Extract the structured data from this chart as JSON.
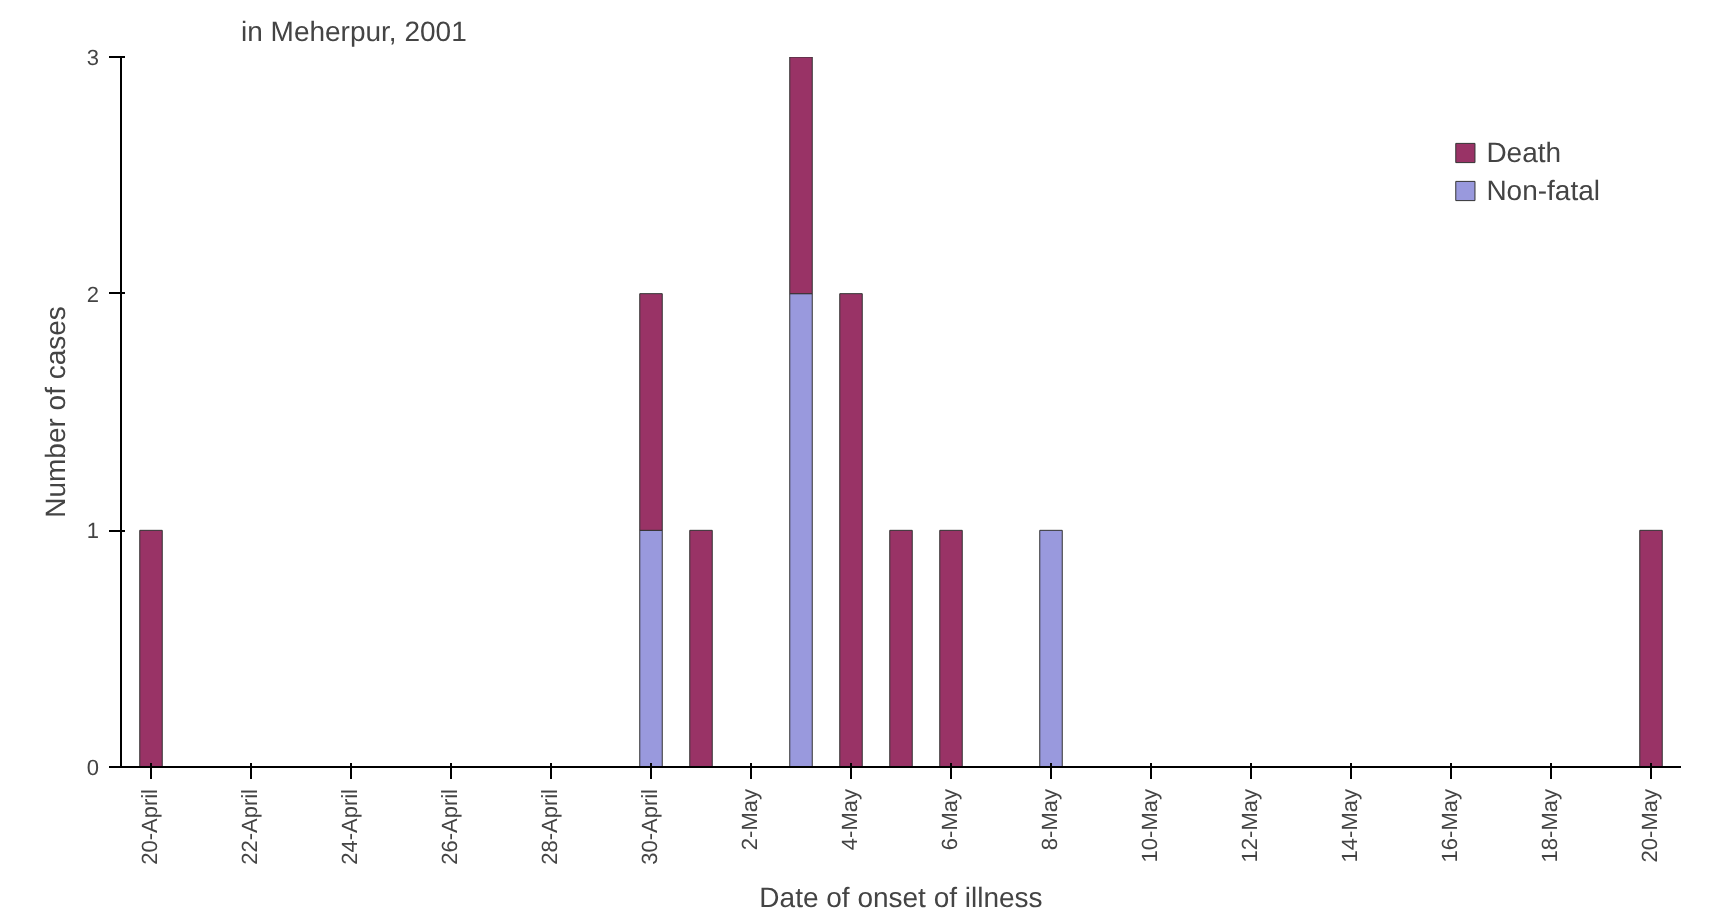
{
  "chart_data": {
    "type": "bar",
    "title": "in Meherpur, 2001",
    "xlabel": "Date of onset of illness",
    "ylabel": "Number of cases",
    "categories": [
      "20-April",
      null,
      "22-April",
      null,
      "24-April",
      null,
      "26-April",
      null,
      "28-April",
      null,
      "30-April",
      null,
      "2-May",
      null,
      "4-May",
      null,
      "6-May",
      null,
      "8-May",
      null,
      "10-May",
      null,
      "12-May",
      null,
      "14-May",
      null,
      "16-May",
      null,
      "18-May",
      null,
      "20-May"
    ],
    "stacked": true,
    "series": [
      {
        "name": "Non-fatal",
        "color": "#9999dd",
        "values": [
          0,
          0,
          0,
          0,
          0,
          0,
          0,
          0,
          0,
          0,
          1,
          0,
          0,
          2,
          0,
          0,
          0,
          0,
          1,
          0,
          0,
          0,
          0,
          0,
          0,
          0,
          0,
          0,
          0,
          0,
          0
        ]
      },
      {
        "name": "Death",
        "color": "#993366",
        "values": [
          1,
          0,
          0,
          0,
          0,
          0,
          0,
          0,
          0,
          0,
          1,
          1,
          0,
          1,
          2,
          1,
          1,
          0,
          0,
          0,
          0,
          0,
          0,
          0,
          0,
          0,
          0,
          0,
          0,
          0,
          1
        ]
      }
    ],
    "ylim": [
      0,
      3
    ],
    "yticks": [
      0,
      1,
      2,
      3
    ],
    "grid": false,
    "legend": "top right"
  }
}
